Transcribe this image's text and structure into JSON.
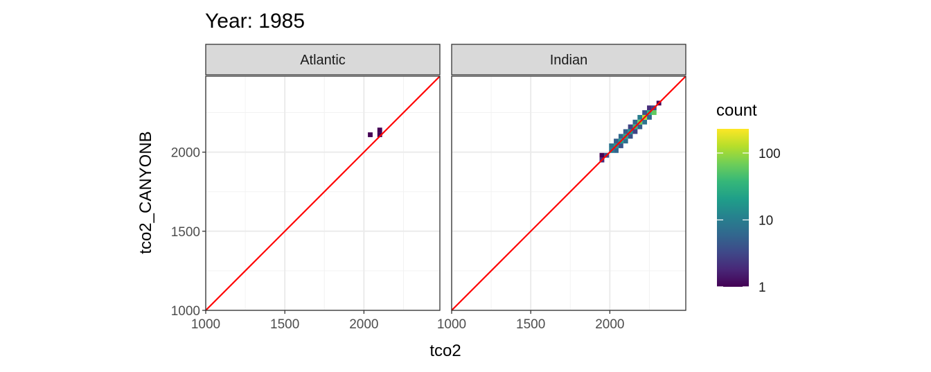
{
  "chart_data": {
    "type": "heatmap",
    "title": "Year: 1985",
    "xlabel": "tco2",
    "ylabel": "tco2_CANYONB",
    "xlim": [
      1000,
      2480
    ],
    "ylim": [
      1000,
      2480
    ],
    "x_ticks": [
      1000,
      1500,
      2000
    ],
    "y_ticks": [
      1000,
      1500,
      2000
    ],
    "grid": true,
    "reference_line": {
      "slope": 1,
      "intercept": 0,
      "color": "#ff0000"
    },
    "bin_width": 30,
    "legend": {
      "title": "count",
      "position": "right",
      "scale": "log10",
      "range": [
        1,
        230
      ],
      "ticks": [
        1,
        10,
        100
      ],
      "palette": [
        "#440154",
        "#482878",
        "#3e4a89",
        "#31688e",
        "#26828e",
        "#1f9e89",
        "#35b779",
        "#6ece58",
        "#b5de2b",
        "#fde725"
      ]
    },
    "panels": [
      {
        "name": "Atlantic",
        "bins": [
          {
            "x": 2040,
            "y": 2110,
            "count": 1
          },
          {
            "x": 2100,
            "y": 2110,
            "count": 1
          },
          {
            "x": 2100,
            "y": 2140,
            "count": 1
          }
        ]
      },
      {
        "name": "Indian",
        "bins": [
          {
            "x": 1950,
            "y": 1950,
            "count": 2
          },
          {
            "x": 1950,
            "y": 1980,
            "count": 1
          },
          {
            "x": 1980,
            "y": 1980,
            "count": 4
          },
          {
            "x": 2010,
            "y": 2010,
            "count": 10
          },
          {
            "x": 2010,
            "y": 2040,
            "count": 8
          },
          {
            "x": 2040,
            "y": 2010,
            "count": 6
          },
          {
            "x": 2040,
            "y": 2040,
            "count": 15
          },
          {
            "x": 2040,
            "y": 2070,
            "count": 5
          },
          {
            "x": 2070,
            "y": 2040,
            "count": 4
          },
          {
            "x": 2070,
            "y": 2070,
            "count": 20
          },
          {
            "x": 2070,
            "y": 2100,
            "count": 6
          },
          {
            "x": 2100,
            "y": 2070,
            "count": 7
          },
          {
            "x": 2100,
            "y": 2100,
            "count": 25
          },
          {
            "x": 2100,
            "y": 2130,
            "count": 5
          },
          {
            "x": 2130,
            "y": 2100,
            "count": 4
          },
          {
            "x": 2130,
            "y": 2130,
            "count": 18
          },
          {
            "x": 2130,
            "y": 2160,
            "count": 3
          },
          {
            "x": 2160,
            "y": 2130,
            "count": 3
          },
          {
            "x": 2160,
            "y": 2160,
            "count": 40
          },
          {
            "x": 2160,
            "y": 2190,
            "count": 6
          },
          {
            "x": 2190,
            "y": 2160,
            "count": 5
          },
          {
            "x": 2190,
            "y": 2190,
            "count": 70
          },
          {
            "x": 2190,
            "y": 2220,
            "count": 10
          },
          {
            "x": 2220,
            "y": 2190,
            "count": 8
          },
          {
            "x": 2220,
            "y": 2220,
            "count": 120
          },
          {
            "x": 2220,
            "y": 2250,
            "count": 4
          },
          {
            "x": 2250,
            "y": 2220,
            "count": 6
          },
          {
            "x": 2250,
            "y": 2250,
            "count": 30
          },
          {
            "x": 2250,
            "y": 2280,
            "count": 2
          },
          {
            "x": 2280,
            "y": 2250,
            "count": 60
          },
          {
            "x": 2280,
            "y": 2280,
            "count": 3
          },
          {
            "x": 2310,
            "y": 2310,
            "count": 1
          }
        ]
      }
    ]
  }
}
